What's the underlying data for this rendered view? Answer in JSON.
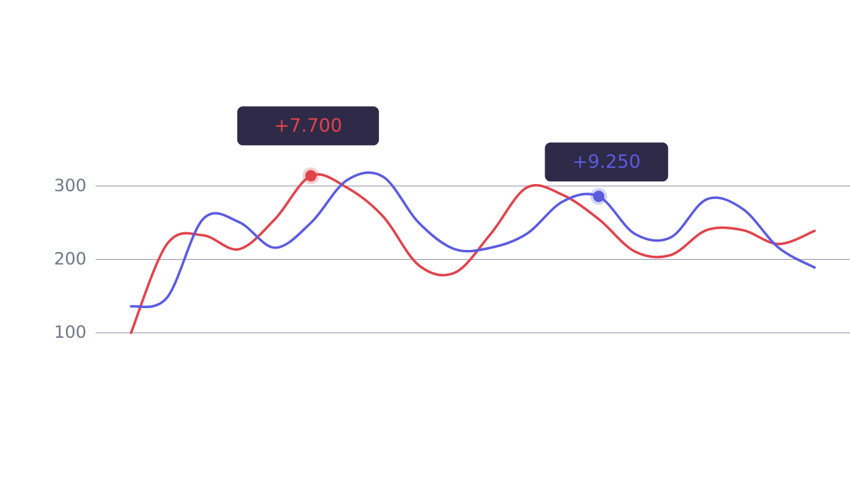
{
  "chart_data": {
    "type": "line",
    "categories": [
      null,
      null,
      null,
      null,
      null,
      null,
      null,
      null,
      null,
      null,
      null,
      null,
      null,
      null,
      null,
      null,
      null,
      null,
      null,
      null
    ],
    "series": [
      {
        "color": "#e0434b",
        "values": [
          100,
          221,
          233,
          214,
          255,
          314,
          298,
          259,
          192,
          182,
          235,
          298,
          288,
          255,
          211,
          206,
          240,
          240,
          221,
          239
        ]
      },
      {
        "color": "#5b5be0",
        "values": [
          136,
          148,
          255,
          251,
          216,
          250,
          308,
          313,
          250,
          214,
          216,
          235,
          279,
          286,
          235,
          230,
          282,
          269,
          216,
          189
        ]
      }
    ],
    "annotations": [
      "+7.700",
      "+9.250"
    ],
    "ylim": [
      100,
      350
    ],
    "yticks": [
      100,
      200,
      300
    ],
    "grid": true
  }
}
